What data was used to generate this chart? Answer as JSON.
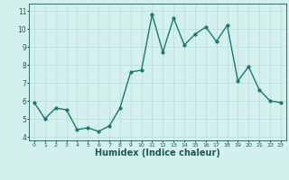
{
  "x": [
    0,
    1,
    2,
    3,
    4,
    5,
    6,
    7,
    8,
    9,
    10,
    11,
    12,
    13,
    14,
    15,
    16,
    17,
    18,
    19,
    20,
    21,
    22,
    23
  ],
  "y": [
    5.9,
    5.0,
    5.6,
    5.5,
    4.4,
    4.5,
    4.3,
    4.6,
    5.6,
    7.6,
    7.7,
    10.8,
    8.7,
    10.6,
    9.1,
    9.7,
    10.1,
    9.3,
    10.2,
    7.1,
    7.9,
    6.6,
    6.0,
    5.9
  ],
  "line_color": "#1a7a6e",
  "marker": "o",
  "marker_size": 2,
  "linewidth": 1.0,
  "bg_color": "#d4f0ec",
  "grid_color": "#b8ddd8",
  "tick_color": "#1a5a52",
  "xlabel": "Humidex (Indice chaleur)",
  "xlabel_fontsize": 7,
  "ylabel_ticks": [
    4,
    5,
    6,
    7,
    8,
    9,
    10,
    11
  ],
  "xlim": [
    -0.5,
    23.5
  ],
  "ylim": [
    3.8,
    11.4
  ]
}
